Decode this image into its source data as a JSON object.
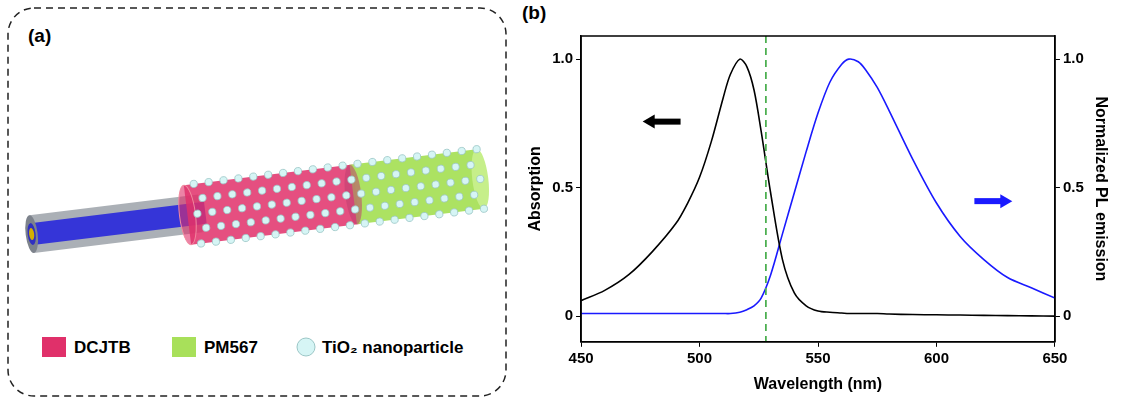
{
  "diagram": {
    "panel_label": "(a)",
    "legend": [
      {
        "label": "DCJTB",
        "color": "#e0306a"
      },
      {
        "label": "PM567",
        "color": "#a8e05a"
      },
      {
        "label": "TiO₂ nanoparticle",
        "color": "#d6f5f5"
      }
    ]
  },
  "chart_data": {
    "type": "line",
    "panel_label": "(b)",
    "xlabel": "Wavelength (nm)",
    "ylabel": "Absorption",
    "y2label": "Normalized PL emission",
    "x": [
      450,
      460,
      470,
      480,
      490,
      495,
      500,
      505,
      510,
      513,
      517,
      520,
      523,
      526,
      530,
      535,
      540,
      545,
      550,
      555,
      560,
      563,
      567,
      570,
      575,
      580,
      590,
      600,
      610,
      620,
      630,
      640,
      650
    ],
    "series": [
      {
        "color": "#000000",
        "axis": "y",
        "values": [
          0.06,
          0.1,
          0.16,
          0.25,
          0.36,
          0.44,
          0.54,
          0.68,
          0.85,
          0.94,
          1.0,
          0.97,
          0.88,
          0.72,
          0.48,
          0.22,
          0.09,
          0.04,
          0.02,
          0.015,
          0.012,
          0.01,
          0.01,
          0.01,
          0.01,
          0.008,
          0.006,
          0.005,
          0.004,
          0.003,
          0.002,
          0.001,
          0
        ]
      },
      {
        "color": "#1a1aff",
        "axis": "y2",
        "values": [
          0.01,
          0.01,
          0.01,
          0.01,
          0.01,
          0.01,
          0.01,
          0.01,
          0.01,
          0.01,
          0.015,
          0.025,
          0.04,
          0.07,
          0.16,
          0.32,
          0.48,
          0.64,
          0.79,
          0.91,
          0.98,
          1.0,
          0.99,
          0.96,
          0.89,
          0.8,
          0.61,
          0.44,
          0.31,
          0.22,
          0.15,
          0.11,
          0.07
        ]
      }
    ],
    "xlim": [
      450,
      650
    ],
    "xticks": [
      450,
      500,
      550,
      600,
      650
    ],
    "ylim": [
      -0.1,
      1.09
    ],
    "yticks": [
      0,
      0.5,
      {
        "value": 1,
        "label": "1.0"
      }
    ],
    "y2lim": [
      -0.1,
      1.09
    ],
    "y2ticks": [
      0,
      0.5,
      {
        "value": 1,
        "label": "1.0"
      }
    ],
    "vertical_line": {
      "x": 528,
      "color": "#4caf50",
      "line_style": "dashed"
    },
    "grid": false
  }
}
